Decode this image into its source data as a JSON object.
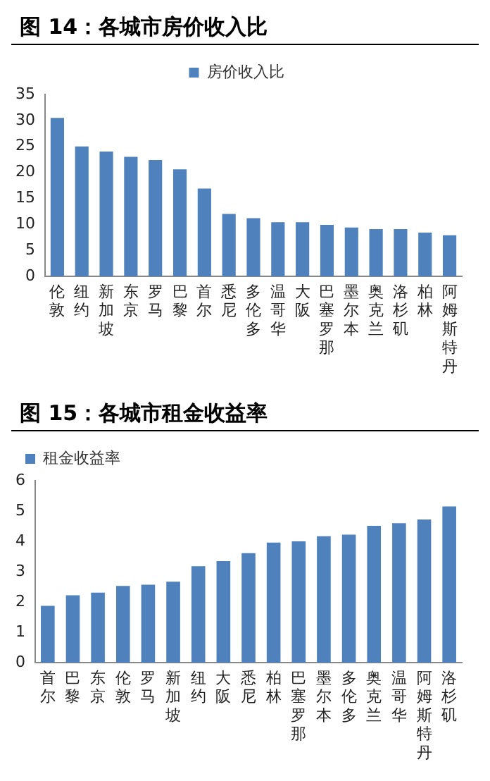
{
  "chart_data": [
    {
      "type": "bar",
      "title": "图 14：各城市房价收入比",
      "categories": [
        "伦敦",
        "纽约",
        "新加坡",
        "东京",
        "罗马",
        "巴黎",
        "首尔",
        "悉尼",
        "多伦多",
        "温哥华",
        "大阪",
        "巴塞罗那",
        "墨尔本",
        "奥克兰",
        "洛杉矶",
        "柏林",
        "阿姆斯特丹"
      ],
      "series": [
        {
          "name": "房价收入比",
          "color": "#4f81bd",
          "values": [
            30.5,
            25,
            24,
            23,
            22.4,
            20.6,
            16.9,
            12,
            11.2,
            10.4,
            10.4,
            9.9,
            9.4,
            9.1,
            9.1,
            8.4,
            7.9
          ]
        }
      ],
      "ylim": [
        0,
        35
      ],
      "yticks": [
        0,
        5,
        10,
        15,
        20,
        25,
        30,
        35
      ],
      "legend": "top"
    },
    {
      "type": "bar",
      "title": "图 15：各城市租金收益率",
      "categories": [
        "首尔",
        "巴黎",
        "东京",
        "伦敦",
        "罗马",
        "新加坡",
        "纽约",
        "大阪",
        "悉尼",
        "柏林",
        "巴塞罗那",
        "墨尔本",
        "多伦多",
        "奥克兰",
        "温哥华",
        "阿姆斯特丹",
        "洛杉矶"
      ],
      "series": [
        {
          "name": "租金收益率",
          "color": "#4f81bd",
          "values": [
            1.87,
            2.22,
            2.31,
            2.53,
            2.57,
            2.67,
            3.18,
            3.35,
            3.61,
            3.96,
            4.0,
            4.17,
            4.22,
            4.51,
            4.6,
            4.72,
            5.15
          ]
        }
      ],
      "ylim": [
        0,
        6
      ],
      "yticks": [
        0,
        1,
        2,
        3,
        4,
        5,
        6
      ],
      "legend": "top left"
    }
  ]
}
